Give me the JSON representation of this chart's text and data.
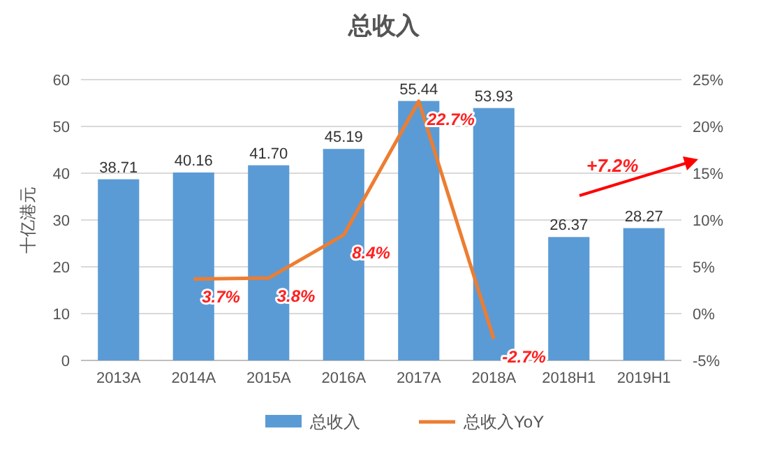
{
  "chart_data": {
    "type": "bar",
    "title": "总收入",
    "ylabel": "十亿港元",
    "categories": [
      "2013A",
      "2014A",
      "2015A",
      "2016A",
      "2017A",
      "2018A",
      "2018H1",
      "2019H1"
    ],
    "series": [
      {
        "name": "总收入",
        "color": "#5b9bd5",
        "values": [
          38.71,
          40.16,
          41.7,
          45.19,
          55.44,
          53.93,
          26.37,
          28.27
        ],
        "value_labels": [
          "38.71",
          "40.16",
          "41.70",
          "45.19",
          "55.44",
          "53.93",
          "26.37",
          "28.27"
        ]
      },
      {
        "name": "总收入YoY",
        "type": "line",
        "axis": "y2",
        "color": "#ed7d31",
        "values": [
          null,
          3.7,
          3.8,
          8.4,
          22.7,
          -2.7,
          null,
          null
        ],
        "value_labels": [
          null,
          "3.7%",
          "3.8%",
          "8.4%",
          "22.7%",
          "-2.7%",
          null,
          null
        ]
      }
    ],
    "ylim": [
      0,
      60
    ],
    "yticks": [
      0,
      10,
      20,
      30,
      40,
      50,
      60
    ],
    "y2lim": [
      -5,
      25
    ],
    "y2ticks": [
      {
        "value": -5,
        "label": "-5%"
      },
      {
        "value": 0,
        "label": "0%"
      },
      {
        "value": 5,
        "label": "5%"
      },
      {
        "value": 10,
        "label": "10%"
      },
      {
        "value": 15,
        "label": "15%"
      },
      {
        "value": 20,
        "label": "20%"
      },
      {
        "value": 25,
        "label": "25%"
      }
    ],
    "grid": "y",
    "legend": "bottom",
    "annotations": [
      "+7.2%"
    ]
  }
}
